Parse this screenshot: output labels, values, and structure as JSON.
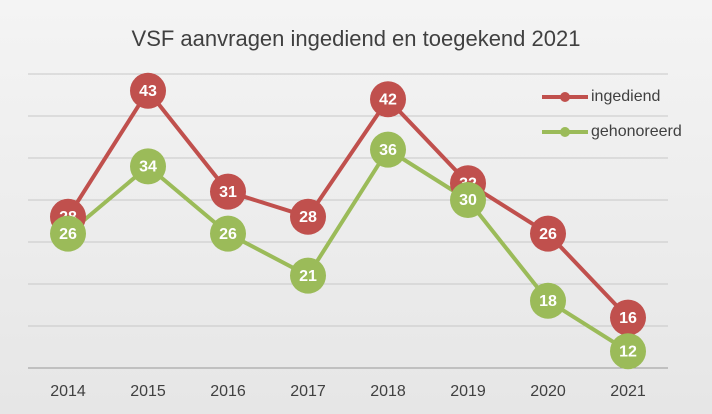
{
  "chart_data": {
    "type": "line",
    "title": "VSF aanvragen ingediend en toegekend 2021",
    "categories": [
      "2014",
      "2015",
      "2016",
      "2017",
      "2018",
      "2019",
      "2020",
      "2021"
    ],
    "series": [
      {
        "name": "ingediend",
        "color": "#c0504d",
        "values": [
          28,
          43,
          31,
          28,
          42,
          32,
          26,
          16
        ]
      },
      {
        "name": "gehonoreerd",
        "color": "#9bbb59",
        "values": [
          26,
          34,
          26,
          21,
          36,
          30,
          18,
          12
        ]
      }
    ],
    "ylim": [
      10,
      50
    ],
    "yticks": [
      10,
      15,
      20,
      25,
      30,
      35,
      40,
      45
    ],
    "grid": true,
    "legend": "top-right"
  }
}
